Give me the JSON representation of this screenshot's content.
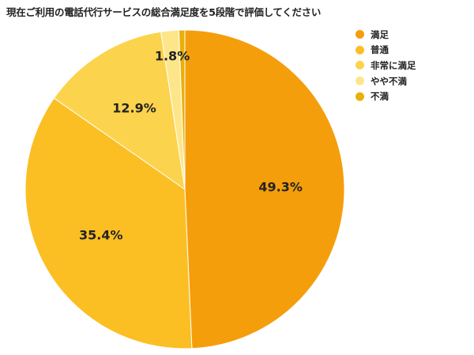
{
  "chart_data": {
    "type": "pie",
    "title": "現在ご利用の電話代行サービスの総合満足度を5段階で評価してください",
    "categories": [
      "満足",
      "普通",
      "非常に満足",
      "やや不満",
      "不満"
    ],
    "values": [
      49.3,
      35.4,
      12.9,
      1.8,
      0.6
    ],
    "value_labels": [
      "49.3%",
      "35.4%",
      "12.9%",
      "1.8%",
      ""
    ],
    "colors": [
      "#F59E0B",
      "#FBBF24",
      "#FCD34D",
      "#FDE68A",
      "#E8B10A"
    ],
    "legend_position": "right",
    "start_angle": "12 o'clock, clockwise"
  },
  "legend": [
    {
      "label": "満足",
      "color": "#F59E0B"
    },
    {
      "label": "普通",
      "color": "#FBBF24"
    },
    {
      "label": "非常に満足",
      "color": "#FCD34D"
    },
    {
      "label": "やや不満",
      "color": "#FDE68A"
    },
    {
      "label": "不満",
      "color": "#E8B10A"
    }
  ]
}
